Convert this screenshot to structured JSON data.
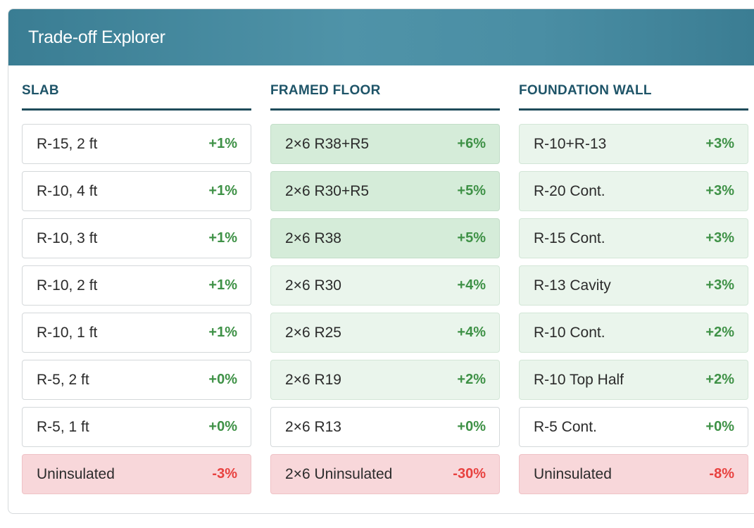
{
  "panel": {
    "title": "Trade-off Explorer"
  },
  "columns": [
    {
      "header": "SLAB",
      "options": [
        {
          "label": "R-15, 2 ft",
          "value": "+1%",
          "tint": "none",
          "sign": "pos"
        },
        {
          "label": "R-10, 4 ft",
          "value": "+1%",
          "tint": "none",
          "sign": "pos"
        },
        {
          "label": "R-10, 3 ft",
          "value": "+1%",
          "tint": "none",
          "sign": "pos"
        },
        {
          "label": "R-10, 2 ft",
          "value": "+1%",
          "tint": "none",
          "sign": "pos"
        },
        {
          "label": "R-10, 1 ft",
          "value": "+1%",
          "tint": "none",
          "sign": "pos"
        },
        {
          "label": "R-5, 2 ft",
          "value": "+0%",
          "tint": "none",
          "sign": "pos"
        },
        {
          "label": "R-5, 1 ft",
          "value": "+0%",
          "tint": "none",
          "sign": "pos"
        },
        {
          "label": "Uninsulated",
          "value": "-3%",
          "tint": "red",
          "sign": "neg"
        }
      ]
    },
    {
      "header": "FRAMED FLOOR",
      "options": [
        {
          "label": "2×6 R38+R5",
          "value": "+6%",
          "tint": "mid",
          "sign": "pos"
        },
        {
          "label": "2×6 R30+R5",
          "value": "+5%",
          "tint": "mid",
          "sign": "pos"
        },
        {
          "label": "2×6 R38",
          "value": "+5%",
          "tint": "mid",
          "sign": "pos"
        },
        {
          "label": "2×6 R30",
          "value": "+4%",
          "tint": "light",
          "sign": "pos"
        },
        {
          "label": "2×6 R25",
          "value": "+4%",
          "tint": "light",
          "sign": "pos"
        },
        {
          "label": "2×6 R19",
          "value": "+2%",
          "tint": "light",
          "sign": "pos"
        },
        {
          "label": "2×6 R13",
          "value": "+0%",
          "tint": "none",
          "sign": "pos"
        },
        {
          "label": "2×6 Uninsulated",
          "value": "-30%",
          "tint": "red",
          "sign": "neg"
        }
      ]
    },
    {
      "header": "FOUNDATION WALL",
      "options": [
        {
          "label": "R-10+R-13",
          "value": "+3%",
          "tint": "light",
          "sign": "pos"
        },
        {
          "label": "R-20 Cont.",
          "value": "+3%",
          "tint": "light",
          "sign": "pos"
        },
        {
          "label": "R-15 Cont.",
          "value": "+3%",
          "tint": "light",
          "sign": "pos"
        },
        {
          "label": "R-13 Cavity",
          "value": "+3%",
          "tint": "light",
          "sign": "pos"
        },
        {
          "label": "R-10 Cont.",
          "value": "+2%",
          "tint": "light",
          "sign": "pos"
        },
        {
          "label": "R-10 Top Half",
          "value": "+2%",
          "tint": "light",
          "sign": "pos"
        },
        {
          "label": "R-5 Cont.",
          "value": "+0%",
          "tint": "none",
          "sign": "pos"
        },
        {
          "label": "Uninsulated",
          "value": "-8%",
          "tint": "red",
          "sign": "neg"
        }
      ]
    }
  ],
  "colors": {
    "header_gradient_mid": "#4f93a8",
    "column_header_text": "#1e5468",
    "positive": "#3e9146",
    "negative": "#e8413f",
    "tint_light": "#eaf5ec",
    "tint_mid": "#d5ecd9",
    "tint_red": "#f8d7da"
  }
}
